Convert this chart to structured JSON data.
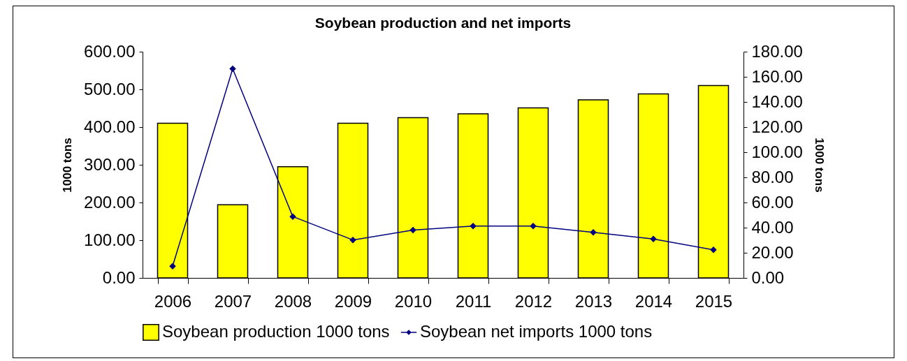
{
  "chart_data": {
    "type": "bar",
    "title": "Soybean production and net imports",
    "ylabel": "1000 tons",
    "y2label": "1000 tons",
    "categories": [
      "2006",
      "2007",
      "2008",
      "2009",
      "2010",
      "2011",
      "2012",
      "2013",
      "2014",
      "2015"
    ],
    "series": [
      {
        "name": "Soybean production  1000 tons",
        "color": "#ffff00",
        "values": [
          410,
          194,
          295,
          410,
          425,
          435,
          451,
          472,
          488,
          510
        ]
      },
      {
        "name": "Soybean net imports  1000 tons",
        "type": "line",
        "axis": "y2",
        "color": "#000080",
        "marker": "diamond",
        "values": [
          9.3,
          166.4,
          48.8,
          30.2,
          38.0,
          41.2,
          41.2,
          36.2,
          31.0,
          22.3
        ]
      }
    ],
    "ylim": [
      0,
      600
    ],
    "yticks": [
      {
        "value": 0,
        "label": "0.00"
      },
      {
        "value": 100,
        "label": "100.00"
      },
      {
        "value": 200,
        "label": "200.00"
      },
      {
        "value": 300,
        "label": "300.00"
      },
      {
        "value": 400,
        "label": "400.00"
      },
      {
        "value": 500,
        "label": "500.00"
      },
      {
        "value": 600,
        "label": "600.00"
      }
    ],
    "y2lim": [
      0,
      180
    ],
    "y2ticks": [
      {
        "value": 0,
        "label": "0.00"
      },
      {
        "value": 20,
        "label": "20.00"
      },
      {
        "value": 40,
        "label": "40.00"
      },
      {
        "value": 60,
        "label": "60.00"
      },
      {
        "value": 80,
        "label": "80.00"
      },
      {
        "value": 100,
        "label": "100.00"
      },
      {
        "value": 120,
        "label": "120.00"
      },
      {
        "value": 140,
        "label": "140.00"
      },
      {
        "value": 160,
        "label": "160.00"
      },
      {
        "value": 180,
        "label": "180.00"
      }
    ],
    "grid": false,
    "legend": "bottom"
  }
}
